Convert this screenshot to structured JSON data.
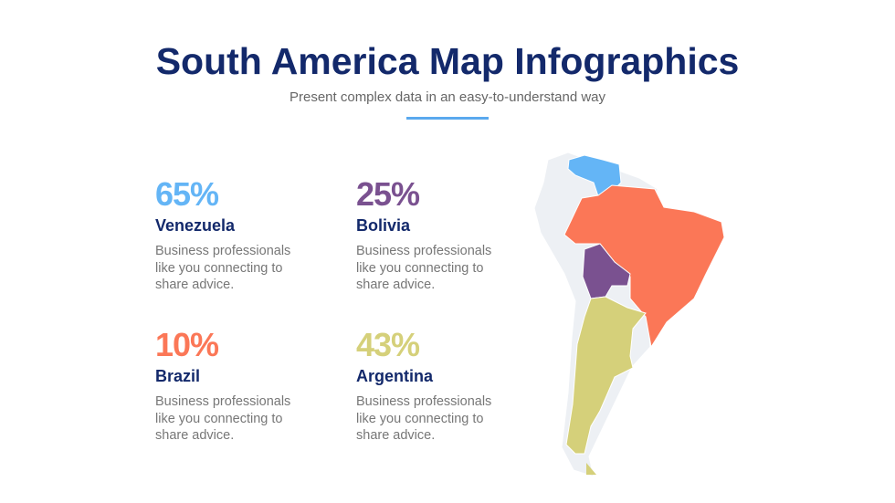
{
  "header": {
    "title": "South America Map Infographics",
    "subtitle": "Present complex data in an easy-to-understand way"
  },
  "items": [
    {
      "percent": "65%",
      "country": "Venezuela",
      "description": "Business professionals like you connecting to share advice.",
      "color": "#64b5f6"
    },
    {
      "percent": "25%",
      "country": "Bolivia",
      "description": "Business professionals like you connecting to share advice.",
      "color": "#7a5190"
    },
    {
      "percent": "10%",
      "country": "Brazil",
      "description": "Business professionals like you connecting to share advice.",
      "color": "#fb7757"
    },
    {
      "percent": "43%",
      "country": "Argentina",
      "description": "Business professionals like you connecting to share advice.",
      "color": "#d5d07a"
    }
  ],
  "map": {
    "base_color": "#edf0f4"
  }
}
